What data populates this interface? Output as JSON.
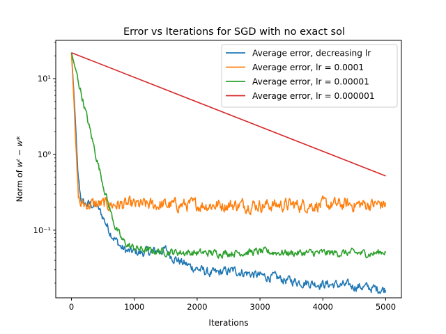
{
  "chart_data": {
    "type": "line",
    "title": "Error vs Iterations for SGD with no exact sol",
    "xlabel": "Iterations",
    "ylabel_prefix": "Norm of ",
    "ylabel_math": "wᵗ − w*",
    "yscale": "log",
    "xlim": [
      -250,
      5250
    ],
    "ylim": [
      0.0128,
      32
    ],
    "x_ticks": [
      0,
      1000,
      2000,
      3000,
      4000,
      5000
    ],
    "x_tick_labels": [
      "0",
      "1000",
      "2000",
      "3000",
      "4000",
      "5000"
    ],
    "y_ticks": [
      0.1,
      1,
      10
    ],
    "y_tick_labels": [
      "10⁻¹",
      "10⁰",
      "10¹"
    ],
    "grid": false,
    "legend_position": "top-right",
    "series": [
      {
        "name": "Average error, decreasing lr",
        "color": "#1f77b4",
        "noise": 0.05,
        "points": [
          [
            0,
            22
          ],
          [
            50,
            4.5
          ],
          [
            100,
            0.55
          ],
          [
            150,
            0.26
          ],
          [
            200,
            0.22
          ],
          [
            300,
            0.22
          ],
          [
            400,
            0.21
          ],
          [
            500,
            0.15
          ],
          [
            600,
            0.1
          ],
          [
            700,
            0.075
          ],
          [
            800,
            0.058
          ],
          [
            900,
            0.052
          ],
          [
            1000,
            0.052
          ],
          [
            1100,
            0.05
          ],
          [
            1200,
            0.052
          ],
          [
            1300,
            0.052
          ],
          [
            1400,
            0.054
          ],
          [
            1500,
            0.055
          ],
          [
            1600,
            0.045
          ],
          [
            1700,
            0.04
          ],
          [
            1800,
            0.036
          ],
          [
            1900,
            0.033
          ],
          [
            2000,
            0.031
          ],
          [
            2100,
            0.029
          ],
          [
            2200,
            0.027
          ],
          [
            2300,
            0.027
          ],
          [
            2400,
            0.028
          ],
          [
            2500,
            0.029
          ],
          [
            2600,
            0.029
          ],
          [
            2700,
            0.028
          ],
          [
            2800,
            0.027
          ],
          [
            2900,
            0.026
          ],
          [
            3000,
            0.025
          ],
          [
            3200,
            0.024
          ],
          [
            3400,
            0.022
          ],
          [
            3600,
            0.021
          ],
          [
            3800,
            0.02
          ],
          [
            4000,
            0.0195
          ],
          [
            4200,
            0.019
          ],
          [
            4400,
            0.0185
          ],
          [
            4600,
            0.018
          ],
          [
            4700,
            0.0175
          ],
          [
            4800,
            0.017
          ],
          [
            5000,
            0.0165
          ]
        ]
      },
      {
        "name": "Average error, lr = 0.0001",
        "color": "#ff7f0e",
        "noise": 0.07,
        "points": [
          [
            0,
            22
          ],
          [
            40,
            5
          ],
          [
            80,
            0.8
          ],
          [
            110,
            0.28
          ],
          [
            140,
            0.22
          ],
          [
            300,
            0.22
          ],
          [
            1000,
            0.215
          ],
          [
            2000,
            0.215
          ],
          [
            3000,
            0.215
          ],
          [
            4000,
            0.215
          ],
          [
            5000,
            0.22
          ]
        ]
      },
      {
        "name": "Average error, lr = 0.00001",
        "color": "#2ca02c",
        "noise": 0.04,
        "points": [
          [
            0,
            22
          ],
          [
            100,
            10
          ],
          [
            200,
            4.5
          ],
          [
            300,
            2
          ],
          [
            400,
            0.9
          ],
          [
            500,
            0.42
          ],
          [
            600,
            0.2
          ],
          [
            700,
            0.11
          ],
          [
            800,
            0.075
          ],
          [
            900,
            0.063
          ],
          [
            1000,
            0.058
          ],
          [
            1200,
            0.054
          ],
          [
            1500,
            0.052
          ],
          [
            2000,
            0.05
          ],
          [
            2500,
            0.05
          ],
          [
            3000,
            0.052
          ],
          [
            3500,
            0.05
          ],
          [
            4000,
            0.05
          ],
          [
            4500,
            0.05
          ],
          [
            4800,
            0.049
          ],
          [
            5000,
            0.053
          ]
        ]
      },
      {
        "name": "Average error, lr = 0.000001",
        "color": "#d62728",
        "noise": 0,
        "points": [
          [
            0,
            22
          ],
          [
            5000,
            0.52
          ]
        ]
      }
    ]
  }
}
